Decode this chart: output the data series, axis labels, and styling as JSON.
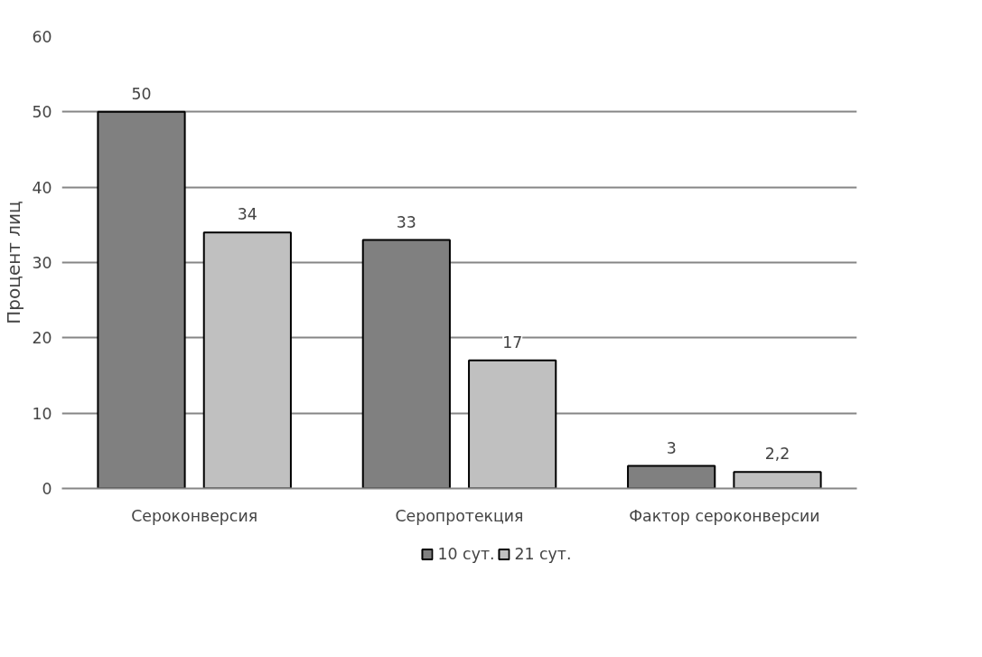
{
  "chart_data": {
    "type": "bar",
    "ylabel": "Процент лиц",
    "categories": [
      "Сероконверсия",
      "Серопротекция",
      "Фактор сероконверсии"
    ],
    "series": [
      {
        "name": "10 сут.",
        "color": "#808080",
        "values": [
          50,
          33,
          3
        ],
        "value_labels": [
          "50",
          "33",
          "3"
        ]
      },
      {
        "name": "21 сут.",
        "color": "#c0c0c0",
        "values": [
          34,
          17,
          2.2
        ],
        "value_labels": [
          "34",
          "17",
          "2,2"
        ]
      }
    ],
    "ylim": [
      0,
      60
    ],
    "yticks": [
      0,
      10,
      20,
      30,
      40,
      50,
      60
    ],
    "grid": "y",
    "legend": "bottom"
  }
}
